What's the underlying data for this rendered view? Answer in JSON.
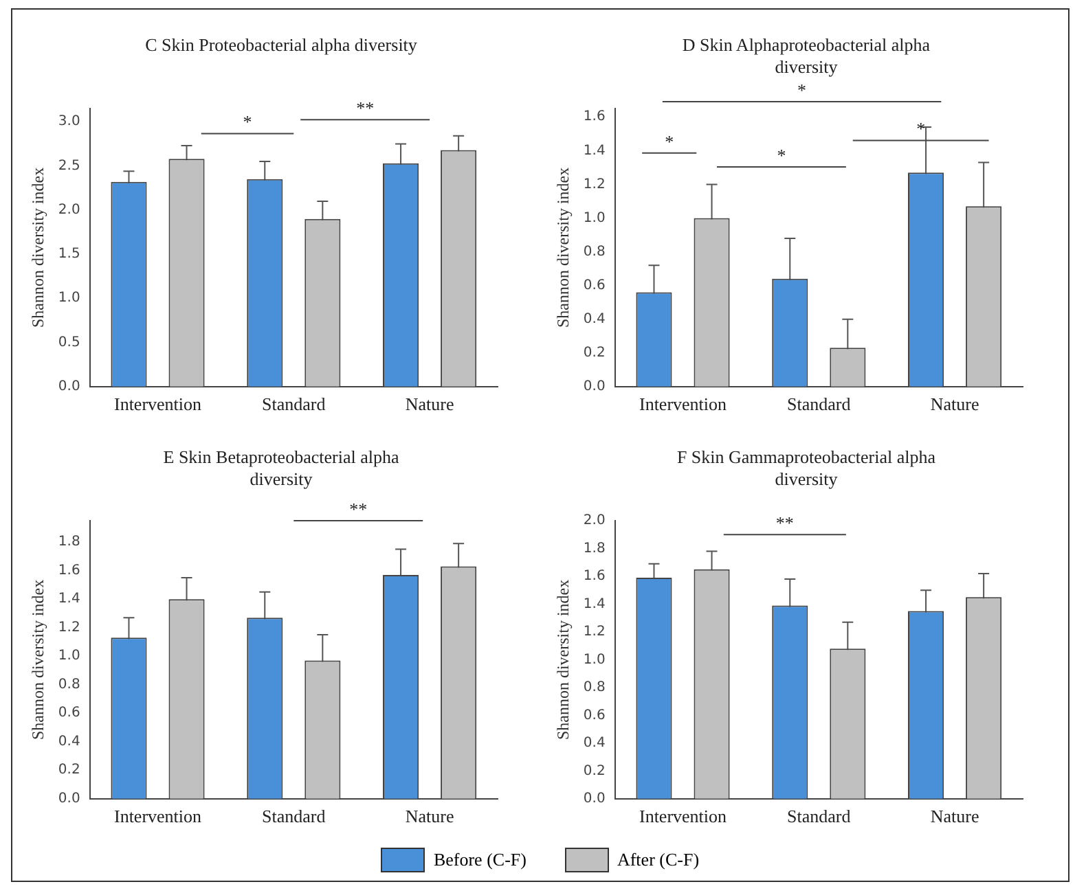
{
  "chart_data": [
    {
      "type": "bar",
      "title": "C  Skin Proteobacterial alpha diversity",
      "ylabel": "Shannon diversity index",
      "categories": [
        "Intervention",
        "Standard",
        "Nature"
      ],
      "series": [
        {
          "name": "Before (C-F)",
          "color": "#4a90d9",
          "values": [
            2.32,
            2.35,
            2.53
          ],
          "errors": [
            0.12,
            0.2,
            0.22
          ]
        },
        {
          "name": "After (C-F)",
          "color": "#c0c0c0",
          "values": [
            2.58,
            1.9,
            2.68
          ],
          "errors": [
            0.15,
            0.2,
            0.16
          ]
        }
      ],
      "ylim": [
        0,
        3.15
      ],
      "yticks": [
        {
          "value": 0,
          "label": "0.0"
        },
        {
          "value": 0.5,
          "label": "0.5"
        },
        {
          "value": 1,
          "label": "1.0"
        },
        {
          "value": 1.5,
          "label": "1.5"
        },
        {
          "value": 2,
          "label": "2.0"
        },
        {
          "value": 2.5,
          "label": "2.5"
        },
        {
          "value": 3,
          "label": "3.0"
        }
      ],
      "annotations": [
        "*",
        "**"
      ],
      "grid": false,
      "legend": "bottom"
    },
    {
      "type": "bar",
      "title": "D  Skin Alphaproteobacterial alpha diversity",
      "ylabel": "Shannon diversity index",
      "categories": [
        "Intervention",
        "Standard",
        "Nature"
      ],
      "series": [
        {
          "name": "Before (C-F)",
          "color": "#4a90d9",
          "values": [
            0.56,
            0.64,
            1.27
          ],
          "errors": [
            0.16,
            0.24,
            0.27
          ]
        },
        {
          "name": "After (C-F)",
          "color": "#c0c0c0",
          "values": [
            1.0,
            0.23,
            1.07
          ],
          "errors": [
            0.2,
            0.17,
            0.26
          ]
        }
      ],
      "ylim": [
        0,
        1.65
      ],
      "yticks": [
        {
          "value": 0,
          "label": "0.0"
        },
        {
          "value": 0.2,
          "label": "0.2"
        },
        {
          "value": 0.4,
          "label": "0.4"
        },
        {
          "value": 0.6,
          "label": "0.6"
        },
        {
          "value": 0.8,
          "label": "0.8"
        },
        {
          "value": 1,
          "label": "1.0"
        },
        {
          "value": 1.2,
          "label": "1.2"
        },
        {
          "value": 1.4,
          "label": "1.4"
        },
        {
          "value": 1.6,
          "label": "1.6"
        }
      ],
      "annotations": [
        "*",
        "*",
        "*",
        "*"
      ],
      "grid": false,
      "legend": "bottom"
    },
    {
      "type": "bar",
      "title": "E  Skin Betaproteobacterial alpha diversity",
      "ylabel": "Shannon diversity index",
      "categories": [
        "Intervention",
        "Standard",
        "Nature"
      ],
      "series": [
        {
          "name": "Before (C-F)",
          "color": "#4a90d9",
          "values": [
            1.13,
            1.27,
            1.57
          ],
          "errors": [
            0.14,
            0.18,
            0.18
          ]
        },
        {
          "name": "After (C-F)",
          "color": "#c0c0c0",
          "values": [
            1.4,
            0.97,
            1.63
          ],
          "errors": [
            0.15,
            0.18,
            0.16
          ]
        }
      ],
      "ylim": [
        0,
        1.95
      ],
      "yticks": [
        {
          "value": 0,
          "label": "0.0"
        },
        {
          "value": 0.2,
          "label": "0.2"
        },
        {
          "value": 0.4,
          "label": "0.4"
        },
        {
          "value": 0.6,
          "label": "0.6"
        },
        {
          "value": 0.8,
          "label": "0.8"
        },
        {
          "value": 1,
          "label": "1.0"
        },
        {
          "value": 1.2,
          "label": "1.2"
        },
        {
          "value": 1.4,
          "label": "1.4"
        },
        {
          "value": 1.6,
          "label": "1.6"
        },
        {
          "value": 1.8,
          "label": "1.8"
        }
      ],
      "annotations": [
        "**"
      ],
      "grid": false,
      "legend": "bottom"
    },
    {
      "type": "bar",
      "title": "F  Skin Gammaproteobacterial alpha diversity",
      "ylabel": "Shannon diversity index",
      "categories": [
        "Intervention",
        "Standard",
        "Nature"
      ],
      "series": [
        {
          "name": "Before (C-F)",
          "color": "#4a90d9",
          "values": [
            1.59,
            1.39,
            1.35
          ],
          "errors": [
            0.1,
            0.19,
            0.15
          ]
        },
        {
          "name": "After (C-F)",
          "color": "#c0c0c0",
          "values": [
            1.65,
            1.08,
            1.45
          ],
          "errors": [
            0.13,
            0.19,
            0.17
          ]
        }
      ],
      "ylim": [
        0,
        2.0
      ],
      "yticks": [
        {
          "value": 0,
          "label": "0.0"
        },
        {
          "value": 0.2,
          "label": "0.2"
        },
        {
          "value": 0.4,
          "label": "0.4"
        },
        {
          "value": 0.6,
          "label": "0.6"
        },
        {
          "value": 0.8,
          "label": "0.8"
        },
        {
          "value": 1,
          "label": "1.0"
        },
        {
          "value": 1.2,
          "label": "1.2"
        },
        {
          "value": 1.4,
          "label": "1.4"
        },
        {
          "value": 1.6,
          "label": "1.6"
        },
        {
          "value": 1.8,
          "label": "1.8"
        },
        {
          "value": 2,
          "label": "2.0"
        }
      ],
      "annotations": [
        "**"
      ],
      "grid": false,
      "legend": "bottom"
    }
  ]
}
